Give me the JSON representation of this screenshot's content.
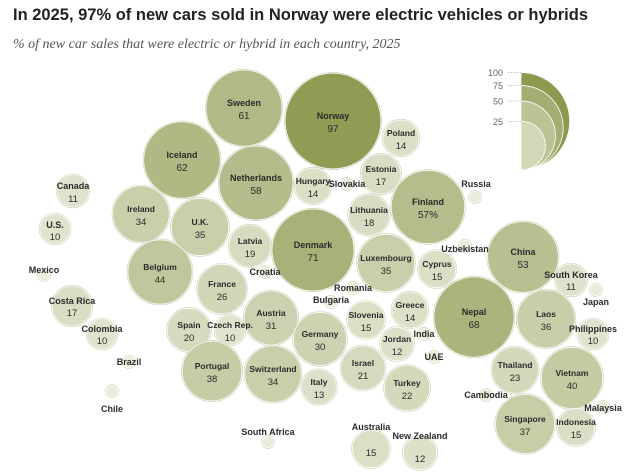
{
  "title": "In 2025, 97% of new cars sold in Norway were electric vehicles or hybrids",
  "subtitle": "% of new car sales that were electric or hybrid in each country, 2025",
  "chart_data": {
    "type": "bubble",
    "value_unit": "%",
    "legend": {
      "placement": "top-right",
      "values": [
        100,
        75,
        50,
        25
      ]
    },
    "colors": {
      "low": "#e9ebdb",
      "high": "#8c9a4f",
      "stroke": "#c9ceb0",
      "text": "#2b2b2b"
    },
    "countries": [
      {
        "name": "Norway",
        "value": 97
      },
      {
        "name": "Sweden",
        "value": 61
      },
      {
        "name": "Iceland",
        "value": 62
      },
      {
        "name": "Netherlands",
        "value": 58
      },
      {
        "name": "Finland",
        "value": 57,
        "suffix": "%"
      },
      {
        "name": "Poland",
        "value": 14
      },
      {
        "name": "Estonia",
        "value": 17
      },
      {
        "name": "Russia"
      },
      {
        "name": "Canada",
        "value": 11
      },
      {
        "name": "U.S.",
        "value": 10
      },
      {
        "name": "Mexico"
      },
      {
        "name": "Ireland",
        "value": 34
      },
      {
        "name": "U.K.",
        "value": 35
      },
      {
        "name": "Hungary",
        "value": 14
      },
      {
        "name": "Slovakia"
      },
      {
        "name": "Lithuania",
        "value": 18
      },
      {
        "name": "Denmark",
        "value": 71
      },
      {
        "name": "Latvia",
        "value": 19
      },
      {
        "name": "Luxembourg",
        "value": 35
      },
      {
        "name": "Uzbekistan"
      },
      {
        "name": "China",
        "value": 53
      },
      {
        "name": "Belgium",
        "value": 44
      },
      {
        "name": "Croatia"
      },
      {
        "name": "Cyprus",
        "value": 15
      },
      {
        "name": "South Korea",
        "value": 11
      },
      {
        "name": "France",
        "value": 26
      },
      {
        "name": "Romania"
      },
      {
        "name": "Japan"
      },
      {
        "name": "Costa Rica",
        "value": 17
      },
      {
        "name": "Bulgaria"
      },
      {
        "name": "Greece",
        "value": 14
      },
      {
        "name": "Austria",
        "value": 31
      },
      {
        "name": "Nepal",
        "value": 68
      },
      {
        "name": "Laos",
        "value": 36
      },
      {
        "name": "Spain",
        "value": 20
      },
      {
        "name": "Slovenia",
        "value": 15
      },
      {
        "name": "Colombia",
        "value": 10
      },
      {
        "name": "Czech Rep.",
        "value": 10
      },
      {
        "name": "Germany",
        "value": 30
      },
      {
        "name": "India"
      },
      {
        "name": "Philippines",
        "value": 10
      },
      {
        "name": "Jordan",
        "value": 12
      },
      {
        "name": "Brazil"
      },
      {
        "name": "UAE"
      },
      {
        "name": "Portugal",
        "value": 38
      },
      {
        "name": "Switzerland",
        "value": 34
      },
      {
        "name": "Israel",
        "value": 21
      },
      {
        "name": "Thailand",
        "value": 23
      },
      {
        "name": "Vietnam",
        "value": 40
      },
      {
        "name": "Italy",
        "value": 13
      },
      {
        "name": "Turkey",
        "value": 22
      },
      {
        "name": "Chile"
      },
      {
        "name": "Cambodia"
      },
      {
        "name": "Malaysia"
      },
      {
        "name": "Singapore",
        "value": 37
      },
      {
        "name": "Indonesia",
        "value": 15
      },
      {
        "name": "South Africa"
      },
      {
        "name": "Australia",
        "value": 15
      },
      {
        "name": "New Zealand",
        "value": 12
      }
    ]
  }
}
